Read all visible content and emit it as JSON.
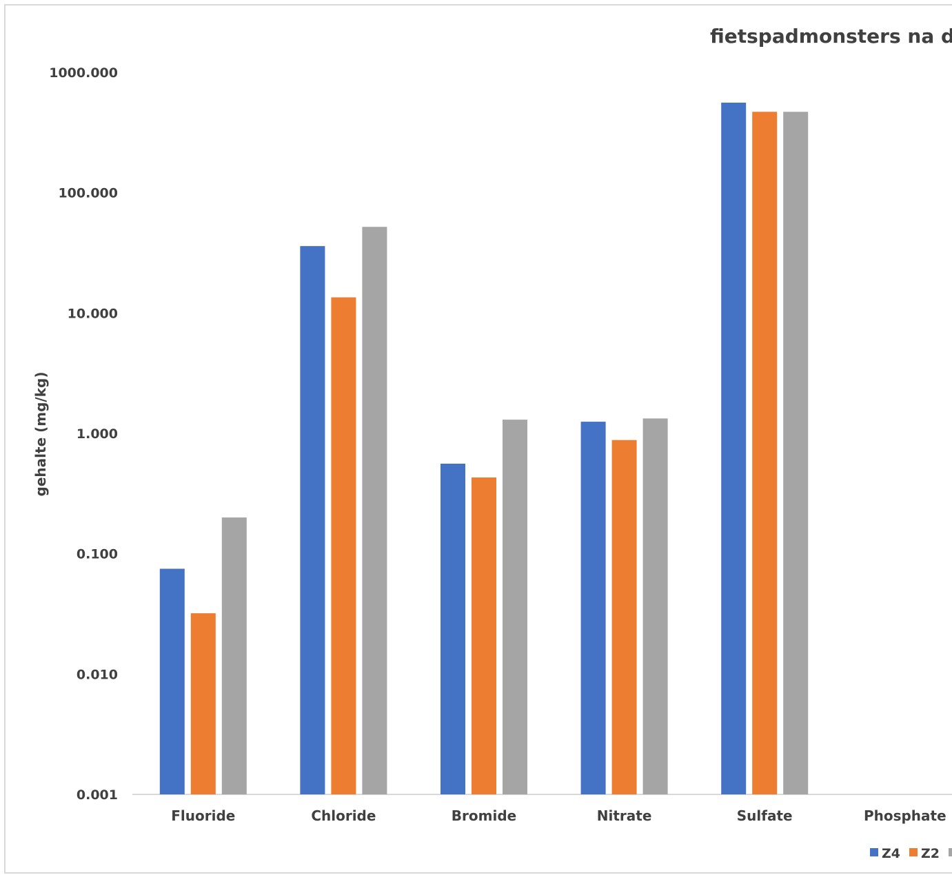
{
  "chart_data": {
    "type": "bar",
    "title": "fietspadmonsters na dr",
    "ylabel": "gehalte (mg/kg)",
    "xlabel": "",
    "yscale": "log",
    "ylim": [
      0.001,
      1000
    ],
    "yticks": [
      "0.001",
      "0.010",
      "0.100",
      "1.000",
      "10.000",
      "100.000",
      "1000.000"
    ],
    "categories": [
      "Fluoride",
      "Chloride",
      "Bromide",
      "Nitrate",
      "Sulfate",
      "Phosphate"
    ],
    "series": [
      {
        "name": "Z4",
        "color": "#4472c4",
        "values": [
          0.075,
          36,
          0.56,
          1.25,
          560,
          null
        ]
      },
      {
        "name": "Z2",
        "color": "#ed7d31",
        "values": [
          0.032,
          13.5,
          0.43,
          0.88,
          470,
          null
        ]
      },
      {
        "name": "",
        "color": "#a5a5a5",
        "values": [
          0.2,
          52,
          1.3,
          1.33,
          470,
          null
        ]
      }
    ],
    "legend": "bottom-right",
    "grid": false
  }
}
